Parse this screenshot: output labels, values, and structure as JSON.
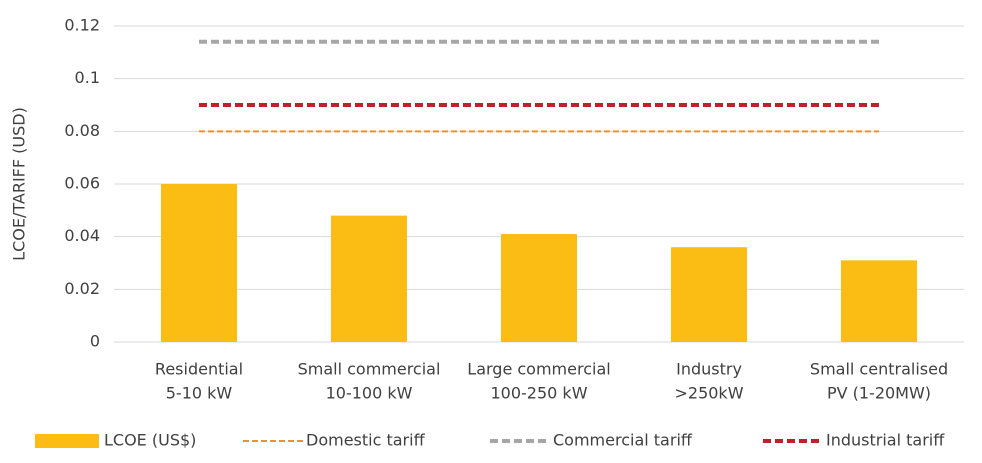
{
  "chart_data": {
    "type": "bar",
    "categories": [
      [
        "Residential",
        "5-10 kW"
      ],
      [
        "Small commercial",
        "10-100 kW"
      ],
      [
        "Large commercial",
        "100-250 kW"
      ],
      [
        "Industry",
        ">250kW"
      ],
      [
        "Small centralised",
        "PV (1-20MW)"
      ]
    ],
    "y_label": "LCOE/TARIFF (USD)",
    "series": [
      {
        "name": "LCOE (US$)",
        "type": "bar",
        "color": "#fbbc14",
        "values": [
          0.06,
          0.048,
          0.041,
          0.036,
          0.031
        ]
      },
      {
        "name": "Domestic tariff",
        "type": "line",
        "color": "#f0902a",
        "dash": "thin",
        "values": [
          0.08,
          0.08,
          0.08,
          0.08,
          0.08
        ]
      },
      {
        "name": "Commercial tariff",
        "type": "line",
        "color": "#a6a6a6",
        "dash": "thick",
        "values": [
          0.114,
          0.114,
          0.114,
          0.114,
          0.114
        ]
      },
      {
        "name": "Industrial tariff",
        "type": "line",
        "color": "#c0202a",
        "dash": "thick",
        "values": [
          0.09,
          0.09,
          0.09,
          0.09,
          0.09
        ]
      }
    ],
    "ylim": [
      0,
      0.12
    ],
    "yticks": [
      0,
      0.02,
      0.04,
      0.06,
      0.08,
      0.1,
      0.12
    ],
    "grid": true,
    "legend": "bottom"
  }
}
